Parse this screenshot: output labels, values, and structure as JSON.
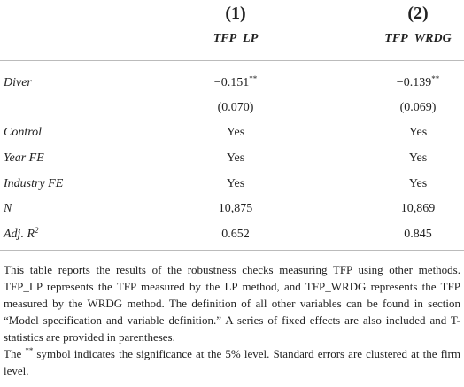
{
  "header": {
    "columns": [
      {
        "number": "(1)",
        "name": "TFP_LP"
      },
      {
        "number": "(2)",
        "name": "TFP_WRDG"
      }
    ]
  },
  "table": {
    "rows": [
      {
        "label": {
          "text": "Diver"
        },
        "cells": [
          {
            "text": "−0.151",
            "sup": "**"
          },
          {
            "text": "−0.139",
            "sup": "**"
          }
        ]
      },
      {
        "label": null,
        "cells": [
          {
            "text": "(0.070)"
          },
          {
            "text": "(0.069)"
          }
        ]
      },
      {
        "label": {
          "text": "Control"
        },
        "cells": [
          {
            "text": "Yes"
          },
          {
            "text": "Yes"
          }
        ]
      },
      {
        "label": {
          "text": "Year FE"
        },
        "cells": [
          {
            "text": "Yes"
          },
          {
            "text": "Yes"
          }
        ]
      },
      {
        "label": {
          "text": "Industry FE"
        },
        "cells": [
          {
            "text": "Yes"
          },
          {
            "text": "Yes"
          }
        ]
      },
      {
        "label": {
          "text": "N"
        },
        "cells": [
          {
            "text": "10,875"
          },
          {
            "text": "10,869"
          }
        ]
      },
      {
        "label": {
          "text": "Adj. R",
          "sup": "2"
        },
        "cells": [
          {
            "text": "0.652"
          },
          {
            "text": "0.845"
          }
        ]
      }
    ]
  },
  "notes": [
    {
      "text": "This table reports the results of the robustness checks measuring TFP using other methods. TFP_LP represents the TFP measured by the LP method, and TFP_WRDG represents the TFP measured by the WRDG method. The definition of all other variables can be found in section “Model specification and variable definition.” A series of fixed effects are also included and T-statistics are provided in parentheses."
    },
    {
      "before": "The ",
      "sup": "**",
      "after": " symbol indicates the significance at the 5% level. Standard errors are clustered at the firm level."
    }
  ]
}
